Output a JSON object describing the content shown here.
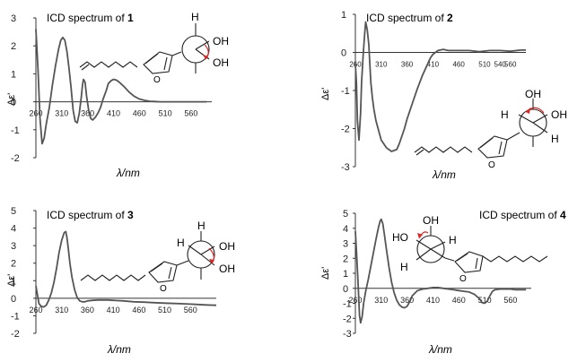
{
  "figure": {
    "panels": [
      {
        "id": "1",
        "title_prefix": "ICD spectrum of ",
        "compound": "1",
        "xlabel": "λ/nm",
        "ylabel": "Δε'",
        "atoms": [
          "H",
          "OH",
          "OH",
          "O"
        ]
      },
      {
        "id": "2",
        "title_prefix": "ICD spectrum of ",
        "compound": "2",
        "xlabel": "λ/nm",
        "ylabel": "Δε'",
        "atoms": [
          "OH",
          "H",
          "OH",
          "H",
          "O"
        ]
      },
      {
        "id": "3",
        "title_prefix": "ICD spectrum of ",
        "compound": "3",
        "xlabel": "λ/nm",
        "ylabel": "Δε'",
        "atoms": [
          "H",
          "OH",
          "H",
          "OH",
          "O"
        ]
      },
      {
        "id": "4",
        "title_prefix": "ICD spectrum of ",
        "compound": "4",
        "xlabel": "λ/nm",
        "ylabel": "Δε'",
        "atoms": [
          "OH",
          "HO",
          "H",
          "H",
          "O"
        ]
      }
    ]
  },
  "chart_data": [
    {
      "type": "line",
      "title": "ICD spectrum of 1",
      "xlabel": "λ/nm",
      "ylabel": "Δε'",
      "xlim": [
        260,
        600
      ],
      "ylim": [
        -2,
        3
      ],
      "xticks": [
        260,
        310,
        360,
        410,
        460,
        510,
        560
      ],
      "yticks": [
        3,
        2,
        1,
        0,
        -1,
        -2
      ],
      "series": [
        {
          "x": [
            260,
            264,
            268,
            272,
            276,
            280,
            286,
            292,
            298,
            304,
            308,
            312,
            316,
            320,
            324,
            328,
            332,
            336,
            340,
            344,
            348,
            350,
            352,
            355,
            358,
            362,
            366,
            370,
            375,
            380,
            385,
            390,
            396,
            400,
            405,
            410,
            415,
            420,
            430,
            440,
            450,
            460,
            470,
            480,
            490,
            500,
            510,
            520,
            530,
            540,
            550,
            560,
            570,
            580,
            590
          ],
          "y": [
            2.6,
            1.2,
            -0.6,
            -1.5,
            -1.3,
            -0.8,
            -0.2,
            0.6,
            1.3,
            1.9,
            2.2,
            2.3,
            2.2,
            1.8,
            1.2,
            0.5,
            -0.3,
            -0.7,
            -0.75,
            -0.4,
            0.2,
            0.6,
            0.8,
            0.7,
            0.2,
            -0.3,
            -0.6,
            -0.65,
            -0.55,
            -0.4,
            -0.2,
            0.1,
            0.4,
            0.65,
            0.75,
            0.8,
            0.78,
            0.72,
            0.55,
            0.35,
            0.2,
            0.1,
            0.05,
            0.02,
            0.01,
            0.0,
            0.0,
            0.0,
            0.0,
            0.0,
            0.0,
            0.0,
            0.0,
            0.0,
            0.0
          ]
        }
      ]
    },
    {
      "type": "line",
      "title": "ICD spectrum of 2",
      "xlabel": "λ/nm",
      "ylabel": "Δε'",
      "xlim": [
        260,
        590
      ],
      "ylim": [
        -3,
        1
      ],
      "xticks": [
        260,
        310,
        360,
        410,
        460,
        510,
        540,
        560
      ],
      "yticks": [
        1,
        0,
        -1,
        -2,
        -3
      ],
      "series": [
        {
          "x": [
            260,
            262,
            264,
            267,
            270,
            272,
            275,
            278,
            280,
            283,
            286,
            288,
            290,
            293,
            296,
            300,
            305,
            310,
            320,
            330,
            340,
            345,
            350,
            355,
            360,
            370,
            380,
            390,
            400,
            405,
            410,
            415,
            420,
            430,
            440,
            460,
            480,
            500,
            520,
            540,
            560,
            580,
            590
          ],
          "y": [
            -0.3,
            -0.8,
            -1.8,
            -2.3,
            -1.6,
            -0.8,
            -0.1,
            0.5,
            0.8,
            0.6,
            0.2,
            -0.3,
            -0.8,
            -1.2,
            -1.5,
            -1.8,
            -2.05,
            -2.3,
            -2.5,
            -2.6,
            -2.55,
            -2.4,
            -2.2,
            -2.0,
            -1.75,
            -1.35,
            -0.95,
            -0.6,
            -0.3,
            -0.15,
            -0.05,
            0.0,
            0.05,
            0.08,
            0.05,
            0.05,
            0.05,
            0.02,
            0.05,
            0.05,
            0.03,
            0.06,
            0.06
          ]
        }
      ]
    },
    {
      "type": "line",
      "title": "ICD spectrum of 3",
      "xlabel": "λ/nm",
      "ylabel": "Δε'",
      "xlim": [
        260,
        610
      ],
      "ylim": [
        -2,
        5
      ],
      "xticks": [
        260,
        310,
        360,
        410,
        460,
        510,
        560
      ],
      "yticks": [
        5,
        4,
        3,
        2,
        1,
        0,
        -1,
        -2
      ],
      "series": [
        {
          "x": [
            260,
            263,
            266,
            270,
            275,
            280,
            285,
            290,
            295,
            300,
            305,
            310,
            315,
            318,
            320,
            323,
            326,
            330,
            335,
            340,
            345,
            350,
            355,
            360,
            370,
            380,
            390,
            400,
            410,
            430,
            450,
            470,
            490,
            510,
            530,
            550,
            570,
            590,
            610
          ],
          "y": [
            0.7,
            0.2,
            -0.3,
            -0.45,
            -0.5,
            -0.4,
            -0.1,
            0.3,
            0.9,
            1.7,
            2.6,
            3.3,
            3.75,
            3.8,
            3.5,
            2.8,
            2.0,
            1.2,
            0.5,
            0.05,
            -0.15,
            -0.2,
            -0.2,
            -0.15,
            -0.12,
            -0.1,
            -0.1,
            -0.1,
            -0.12,
            -0.15,
            -0.2,
            -0.22,
            -0.25,
            -0.28,
            -0.3,
            -0.32,
            -0.35,
            -0.38,
            -0.4
          ]
        }
      ]
    },
    {
      "type": "line",
      "title": "ICD spectrum of 4",
      "xlabel": "λ/nm",
      "ylabel": "Δε'",
      "xlim": [
        260,
        600
      ],
      "ylim": [
        -3,
        5
      ],
      "xticks": [
        260,
        310,
        360,
        410,
        460,
        510,
        560
      ],
      "yticks": [
        5,
        4,
        3,
        2,
        1,
        0,
        -1,
        -2,
        -3
      ],
      "series": [
        {
          "x": [
            260,
            262,
            265,
            268,
            270,
            273,
            276,
            280,
            285,
            290,
            295,
            300,
            305,
            308,
            310,
            313,
            316,
            320,
            325,
            330,
            335,
            340,
            345,
            350,
            355,
            360,
            365,
            370,
            380,
            390,
            400,
            410,
            420,
            430,
            440,
            450,
            460,
            470,
            480,
            490,
            500,
            505,
            510,
            515,
            520,
            525,
            530,
            540,
            550,
            560,
            570,
            580,
            590
          ],
          "y": [
            3.8,
            2.5,
            0.5,
            -1.8,
            -2.3,
            -1.9,
            -1.0,
            -0.2,
            0.6,
            1.5,
            2.4,
            3.3,
            4.1,
            4.5,
            4.6,
            4.3,
            3.6,
            2.6,
            1.4,
            0.4,
            -0.3,
            -0.8,
            -1.1,
            -1.25,
            -1.3,
            -1.2,
            -0.9,
            -0.5,
            -0.15,
            -0.05,
            0.0,
            0.05,
            0.05,
            0.0,
            -0.05,
            -0.1,
            -0.15,
            -0.2,
            -0.25,
            -0.4,
            -0.7,
            -0.95,
            -1.0,
            -0.85,
            -0.5,
            -0.2,
            -0.1,
            -0.05,
            -0.05,
            -0.05,
            -0.1,
            -0.1,
            -0.1
          ]
        }
      ]
    }
  ]
}
